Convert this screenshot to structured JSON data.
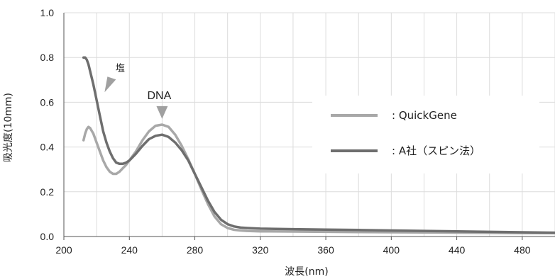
{
  "chart_data": {
    "type": "line",
    "title": "",
    "xlabel": "波長(nm)",
    "ylabel": "吸光度(10mm)",
    "xlim": [
      200,
      500
    ],
    "ylim": [
      0.0,
      1.0
    ],
    "xticks": [
      "200",
      "240",
      "280",
      "320",
      "360",
      "400",
      "440",
      "480"
    ],
    "yticks": [
      "0.0",
      "0.2",
      "0.4",
      "0.6",
      "0.8",
      "1.0"
    ],
    "grid": true,
    "legend_position": "right",
    "annotations": [
      {
        "text": "塩",
        "x": 224,
        "y": 0.67
      },
      {
        "text": "DNA",
        "x": 260,
        "y": 0.57
      }
    ],
    "series": [
      {
        "name": ": QuickGene",
        "color": "#a8a8a8",
        "x": [
          212,
          213,
          214,
          215,
          216,
          218,
          220,
          222,
          224,
          226,
          228,
          230,
          232,
          234,
          236,
          238,
          240,
          244,
          248,
          252,
          256,
          260,
          264,
          268,
          272,
          276,
          280,
          284,
          288,
          292,
          296,
          300,
          304,
          308,
          312,
          320,
          340,
          360,
          380,
          400,
          420,
          440,
          460,
          480,
          500
        ],
        "y": [
          0.43,
          0.46,
          0.48,
          0.49,
          0.485,
          0.46,
          0.42,
          0.38,
          0.34,
          0.31,
          0.29,
          0.28,
          0.28,
          0.29,
          0.305,
          0.32,
          0.34,
          0.38,
          0.43,
          0.47,
          0.495,
          0.5,
          0.49,
          0.455,
          0.405,
          0.345,
          0.28,
          0.21,
          0.145,
          0.09,
          0.055,
          0.038,
          0.03,
          0.027,
          0.025,
          0.023,
          0.022,
          0.021,
          0.02,
          0.019,
          0.018,
          0.017,
          0.016,
          0.015,
          0.015
        ]
      },
      {
        "name": ": A社（スピン法）",
        "color": "#6e6e6e",
        "x": [
          212,
          213,
          214,
          215,
          216,
          218,
          220,
          222,
          224,
          226,
          228,
          230,
          232,
          234,
          236,
          238,
          240,
          244,
          248,
          252,
          256,
          260,
          264,
          268,
          272,
          276,
          280,
          284,
          288,
          292,
          296,
          300,
          304,
          308,
          312,
          320,
          340,
          360,
          380,
          400,
          420,
          440,
          460,
          480,
          500
        ],
        "y": [
          0.8,
          0.8,
          0.79,
          0.77,
          0.74,
          0.68,
          0.61,
          0.54,
          0.47,
          0.42,
          0.38,
          0.35,
          0.33,
          0.325,
          0.325,
          0.33,
          0.34,
          0.37,
          0.405,
          0.435,
          0.45,
          0.455,
          0.445,
          0.42,
          0.385,
          0.34,
          0.28,
          0.22,
          0.16,
          0.11,
          0.075,
          0.055,
          0.045,
          0.04,
          0.038,
          0.035,
          0.033,
          0.031,
          0.029,
          0.027,
          0.025,
          0.023,
          0.021,
          0.019,
          0.017
        ]
      }
    ]
  }
}
